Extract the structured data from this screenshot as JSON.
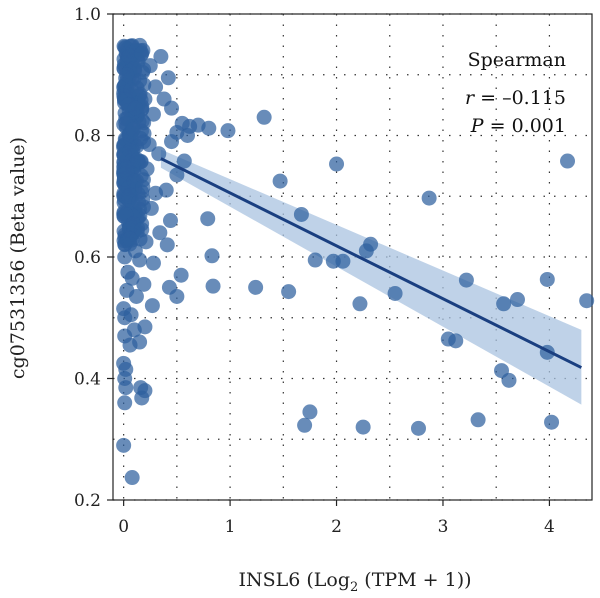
{
  "chart_data": {
    "type": "scatter",
    "xlabel_main": "INSL6 (Log",
    "xlabel_sub": "2",
    "xlabel_tail": " (TPM + 1))",
    "ylabel": "cg07531356 (Beta value)",
    "xlim": [
      -0.1,
      4.4
    ],
    "ylim": [
      0.2,
      1.0
    ],
    "xticks": [
      0,
      1,
      2,
      3,
      4
    ],
    "yticks": [
      0.2,
      0.4,
      0.6,
      0.8,
      1.0
    ],
    "xtick_labels": [
      "0",
      "1",
      "2",
      "3",
      "4"
    ],
    "ytick_labels": [
      "0.2",
      "0.4",
      "0.6",
      "0.8",
      "1.0"
    ],
    "grid": true,
    "grid_style": "dotted",
    "stats": {
      "method": "Spearman",
      "r_label": "r",
      "r_value": " = –0.115",
      "p_label": "P",
      "p_value": " = 0.001"
    },
    "colors": {
      "points": "#2e5f9e",
      "fit_line": "#1a3f80",
      "confidence_band": "#a9c3e0"
    },
    "regression": {
      "x": [
        0.35,
        4.3
      ],
      "y": [
        0.762,
        0.418
      ],
      "ci_lower": [
        0.747,
        0.357
      ],
      "ci_upper": [
        0.777,
        0.48
      ]
    },
    "points": [
      {
        "x": 0.02,
        "y": 0.944
      },
      {
        "x": 0.08,
        "y": 0.948
      },
      {
        "x": 0.05,
        "y": 0.93
      },
      {
        "x": 0.12,
        "y": 0.94
      },
      {
        "x": 0.17,
        "y": 0.935
      },
      {
        "x": 0.35,
        "y": 0.93
      },
      {
        "x": 0.25,
        "y": 0.915
      },
      {
        "x": 0.42,
        "y": 0.895
      },
      {
        "x": 0.1,
        "y": 0.91
      },
      {
        "x": 0.03,
        "y": 0.9
      },
      {
        "x": 0.15,
        "y": 0.89
      },
      {
        "x": 0.3,
        "y": 0.88
      },
      {
        "x": 0.07,
        "y": 0.875
      },
      {
        "x": 0.2,
        "y": 0.86
      },
      {
        "x": 0.38,
        "y": 0.86
      },
      {
        "x": 0.04,
        "y": 0.85
      },
      {
        "x": 0.11,
        "y": 0.845
      },
      {
        "x": 0.45,
        "y": 0.845
      },
      {
        "x": 0.28,
        "y": 0.835
      },
      {
        "x": 0.55,
        "y": 0.82
      },
      {
        "x": 0.62,
        "y": 0.815
      },
      {
        "x": 0.7,
        "y": 0.817
      },
      {
        "x": 0.8,
        "y": 0.812
      },
      {
        "x": 0.98,
        "y": 0.808
      },
      {
        "x": 0.5,
        "y": 0.805
      },
      {
        "x": 0.6,
        "y": 0.8
      },
      {
        "x": 0.45,
        "y": 0.79
      },
      {
        "x": 1.32,
        "y": 0.83
      },
      {
        "x": 0.02,
        "y": 0.82
      },
      {
        "x": 0.09,
        "y": 0.81
      },
      {
        "x": 0.16,
        "y": 0.795
      },
      {
        "x": 0.24,
        "y": 0.785
      },
      {
        "x": 0.33,
        "y": 0.77
      },
      {
        "x": 0.06,
        "y": 0.775
      },
      {
        "x": 0.13,
        "y": 0.76
      },
      {
        "x": 0.57,
        "y": 0.758
      },
      {
        "x": 0.5,
        "y": 0.735
      },
      {
        "x": 0.22,
        "y": 0.745
      },
      {
        "x": 0.03,
        "y": 0.74
      },
      {
        "x": 0.1,
        "y": 0.725
      },
      {
        "x": 0.18,
        "y": 0.715
      },
      {
        "x": 0.3,
        "y": 0.705
      },
      {
        "x": 0.4,
        "y": 0.71
      },
      {
        "x": 0.05,
        "y": 0.7
      },
      {
        "x": 0.14,
        "y": 0.69
      },
      {
        "x": 0.26,
        "y": 0.68
      },
      {
        "x": 0.44,
        "y": 0.66
      },
      {
        "x": 0.79,
        "y": 0.663
      },
      {
        "x": 0.02,
        "y": 0.67
      },
      {
        "x": 0.09,
        "y": 0.655
      },
      {
        "x": 0.17,
        "y": 0.645
      },
      {
        "x": 0.34,
        "y": 0.64
      },
      {
        "x": 0.06,
        "y": 0.63
      },
      {
        "x": 0.21,
        "y": 0.625
      },
      {
        "x": 0.41,
        "y": 0.62
      },
      {
        "x": 0.11,
        "y": 0.61
      },
      {
        "x": 0.01,
        "y": 0.6
      },
      {
        "x": 0.15,
        "y": 0.595
      },
      {
        "x": 0.28,
        "y": 0.59
      },
      {
        "x": 0.83,
        "y": 0.602
      },
      {
        "x": 0.54,
        "y": 0.57
      },
      {
        "x": 0.04,
        "y": 0.575
      },
      {
        "x": 0.08,
        "y": 0.565
      },
      {
        "x": 0.19,
        "y": 0.555
      },
      {
        "x": 0.43,
        "y": 0.55
      },
      {
        "x": 0.84,
        "y": 0.552
      },
      {
        "x": 1.24,
        "y": 0.55
      },
      {
        "x": 1.55,
        "y": 0.543
      },
      {
        "x": 0.5,
        "y": 0.535
      },
      {
        "x": 0.03,
        "y": 0.545
      },
      {
        "x": 0.12,
        "y": 0.535
      },
      {
        "x": 0.27,
        "y": 0.52
      },
      {
        "x": 0.0,
        "y": 0.515
      },
      {
        "x": 0.07,
        "y": 0.505
      },
      {
        "x": 0.01,
        "y": 0.5
      },
      {
        "x": 0.2,
        "y": 0.485
      },
      {
        "x": 0.1,
        "y": 0.48
      },
      {
        "x": 0.01,
        "y": 0.47
      },
      {
        "x": 0.15,
        "y": 0.46
      },
      {
        "x": 0.06,
        "y": 0.455
      },
      {
        "x": 0.0,
        "y": 0.425
      },
      {
        "x": 0.02,
        "y": 0.415
      },
      {
        "x": 0.01,
        "y": 0.4
      },
      {
        "x": 0.16,
        "y": 0.385
      },
      {
        "x": 0.2,
        "y": 0.38
      },
      {
        "x": 0.02,
        "y": 0.385
      },
      {
        "x": 0.17,
        "y": 0.368
      },
      {
        "x": 0.01,
        "y": 0.36
      },
      {
        "x": 0.0,
        "y": 0.29
      },
      {
        "x": 0.08,
        "y": 0.237
      },
      {
        "x": 1.47,
        "y": 0.725
      },
      {
        "x": 1.67,
        "y": 0.67
      },
      {
        "x": 2.0,
        "y": 0.753
      },
      {
        "x": 2.87,
        "y": 0.697
      },
      {
        "x": 4.17,
        "y": 0.758
      },
      {
        "x": 1.8,
        "y": 0.595
      },
      {
        "x": 1.97,
        "y": 0.593
      },
      {
        "x": 2.06,
        "y": 0.593
      },
      {
        "x": 2.28,
        "y": 0.61
      },
      {
        "x": 2.32,
        "y": 0.621
      },
      {
        "x": 2.22,
        "y": 0.523
      },
      {
        "x": 2.55,
        "y": 0.54
      },
      {
        "x": 3.22,
        "y": 0.562
      },
      {
        "x": 3.57,
        "y": 0.523
      },
      {
        "x": 3.7,
        "y": 0.53
      },
      {
        "x": 3.98,
        "y": 0.563
      },
      {
        "x": 4.35,
        "y": 0.528
      },
      {
        "x": 3.05,
        "y": 0.465
      },
      {
        "x": 3.12,
        "y": 0.462
      },
      {
        "x": 3.98,
        "y": 0.443
      },
      {
        "x": 3.55,
        "y": 0.413
      },
      {
        "x": 3.62,
        "y": 0.397
      },
      {
        "x": 1.75,
        "y": 0.345
      },
      {
        "x": 1.7,
        "y": 0.323
      },
      {
        "x": 2.25,
        "y": 0.32
      },
      {
        "x": 2.77,
        "y": 0.318
      },
      {
        "x": 3.33,
        "y": 0.332
      },
      {
        "x": 4.02,
        "y": 0.328
      }
    ],
    "dense_cluster": {
      "x_range": [
        0.0,
        0.2
      ],
      "y_range": [
        0.62,
        0.95
      ],
      "count": 220,
      "seed": 7
    }
  }
}
